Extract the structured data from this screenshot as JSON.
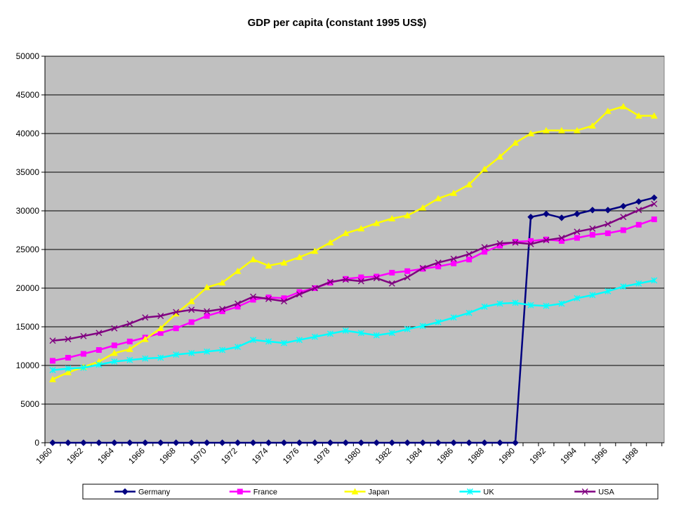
{
  "chart_data": {
    "type": "line",
    "title": "GDP per capita (constant 1995 US$)",
    "xlabel": "",
    "ylabel": "",
    "ylim": [
      0,
      50000
    ],
    "yticks": [
      0,
      5000,
      10000,
      15000,
      20000,
      25000,
      30000,
      35000,
      40000,
      45000,
      50000
    ],
    "xtick_labels": [
      "1960",
      "1962",
      "1964",
      "1966",
      "1968",
      "1970",
      "1972",
      "1974",
      "1976",
      "1978",
      "1980",
      "1982",
      "1984",
      "1986",
      "1988",
      "1990",
      "1992",
      "1994",
      "1996",
      "1998"
    ],
    "x": [
      1960,
      1961,
      1962,
      1963,
      1964,
      1965,
      1966,
      1967,
      1968,
      1969,
      1970,
      1971,
      1972,
      1973,
      1974,
      1975,
      1976,
      1977,
      1978,
      1979,
      1980,
      1981,
      1982,
      1983,
      1984,
      1985,
      1986,
      1987,
      1988,
      1989,
      1990,
      1991,
      1992,
      1993,
      1994,
      1995,
      1996,
      1997,
      1998,
      1999
    ],
    "grid": true,
    "legend": "bottom",
    "plot_background": "#c0c0c0",
    "series": [
      {
        "name": "Germany",
        "color": "#000080",
        "marker": "diamond",
        "values": [
          0,
          0,
          0,
          0,
          0,
          0,
          0,
          0,
          0,
          0,
          0,
          0,
          0,
          0,
          0,
          0,
          0,
          0,
          0,
          0,
          0,
          0,
          0,
          0,
          0,
          0,
          0,
          0,
          0,
          0,
          0,
          29200,
          29600,
          29100,
          29600,
          30100,
          30100,
          30600,
          31200,
          31700
        ]
      },
      {
        "name": "France",
        "color": "#ff00ff",
        "marker": "square",
        "values": [
          10600,
          11000,
          11500,
          12000,
          12600,
          13100,
          13600,
          14200,
          14800,
          15600,
          16400,
          17000,
          17600,
          18500,
          18800,
          18700,
          19500,
          20000,
          20700,
          21200,
          21400,
          21500,
          22000,
          22200,
          22500,
          22800,
          23200,
          23700,
          24700,
          25500,
          26000,
          26100,
          26300,
          26100,
          26500,
          26900,
          27100,
          27500,
          28200,
          28900
        ]
      },
      {
        "name": "Japan",
        "color": "#ffff00",
        "marker": "triangle",
        "values": [
          8200,
          9100,
          9800,
          10500,
          11600,
          12100,
          13400,
          14800,
          16700,
          18300,
          20100,
          20700,
          22200,
          23700,
          22900,
          23300,
          24000,
          24800,
          25900,
          27100,
          27700,
          28400,
          29000,
          29400,
          30400,
          31600,
          32300,
          33400,
          35400,
          37000,
          38800,
          40000,
          40400,
          40400,
          40400,
          41000,
          42900,
          43500,
          42300,
          42300
        ]
      },
      {
        "name": "UK",
        "color": "#00ffff",
        "marker": "asterisk",
        "values": [
          9400,
          9600,
          9700,
          10100,
          10500,
          10700,
          10900,
          11000,
          11400,
          11600,
          11800,
          12000,
          12400,
          13300,
          13100,
          12900,
          13300,
          13700,
          14100,
          14500,
          14200,
          13900,
          14200,
          14700,
          15100,
          15600,
          16200,
          16800,
          17600,
          18000,
          18100,
          17800,
          17700,
          18000,
          18700,
          19100,
          19600,
          20200,
          20600,
          21000
        ]
      },
      {
        "name": "USA",
        "color": "#800080",
        "marker": "x",
        "values": [
          13200,
          13400,
          13800,
          14200,
          14800,
          15400,
          16200,
          16400,
          16900,
          17200,
          17000,
          17300,
          18000,
          18900,
          18600,
          18300,
          19200,
          20000,
          20800,
          21100,
          20900,
          21300,
          20600,
          21400,
          22600,
          23300,
          23800,
          24400,
          25300,
          25800,
          25900,
          25700,
          26200,
          26500,
          27300,
          27700,
          28300,
          29200,
          30100,
          30900
        ]
      }
    ]
  }
}
